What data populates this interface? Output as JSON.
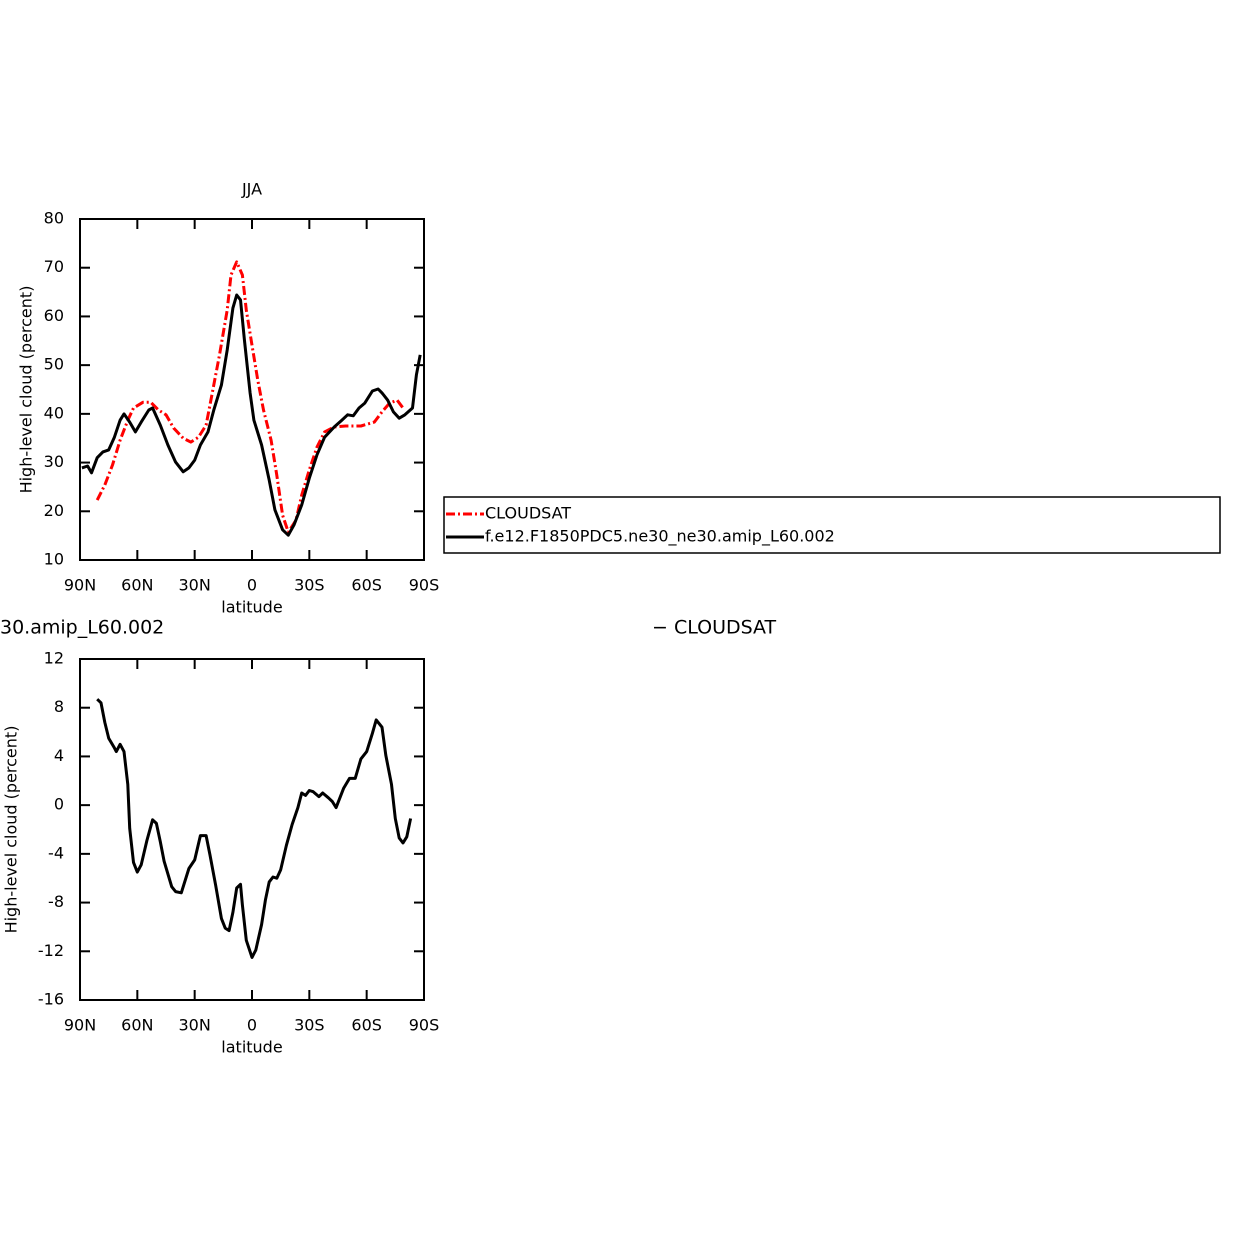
{
  "chart_data": [
    {
      "type": "line",
      "title": "JJA",
      "x_label": "latitude",
      "y_label": "High-level cloud (percent)",
      "xlim": [
        90,
        -90
      ],
      "xticks": [
        {
          "value": 90,
          "label": "90N"
        },
        {
          "value": 60,
          "label": "60N"
        },
        {
          "value": 30,
          "label": "30N"
        },
        0,
        {
          "value": -30,
          "label": "30S"
        },
        {
          "value": -60,
          "label": "60S"
        },
        {
          "value": -90,
          "label": "90S"
        }
      ],
      "ylim": [
        10,
        80
      ],
      "yticks": [
        10,
        20,
        30,
        40,
        50,
        60,
        70,
        80
      ],
      "legend": "right",
      "series": [
        {
          "name": "CLOUDSAT",
          "color": "#ff0000",
          "dashed": true,
          "x": [
            81,
            77,
            73,
            69,
            65,
            62,
            57,
            53,
            49,
            45,
            41,
            36,
            32,
            28,
            24,
            21,
            17,
            13,
            11,
            8,
            5,
            3,
            0,
            -3,
            -6,
            -10,
            -13,
            -16,
            -19,
            -23,
            -26,
            -30,
            -34,
            -38,
            -43,
            -49,
            -57,
            -64,
            -68,
            -72,
            -76,
            -79
          ],
          "values": [
            22.3,
            25.4,
            29.5,
            34.6,
            38.7,
            41.2,
            42.4,
            42.4,
            40.8,
            39.8,
            37.1,
            35,
            34.2,
            35.2,
            37.7,
            43.9,
            52.1,
            61.3,
            68.5,
            71.2,
            68.5,
            61.3,
            54.1,
            47,
            40.8,
            34.6,
            27.4,
            19.2,
            15.7,
            18.2,
            23.3,
            28.5,
            33.2,
            36.3,
            37.3,
            37.5,
            37.5,
            38.3,
            40.4,
            42.2,
            42.8,
            41.2
          ]
        },
        {
          "name": "f.e12.F1850PDC5.ne30_ne30.amip_L60.002",
          "color": "#000000",
          "dashed": false,
          "x": [
            89,
            86,
            84,
            81,
            78,
            75,
            72,
            69,
            67,
            64,
            61,
            58,
            54,
            52,
            48,
            44,
            40,
            36,
            33,
            30,
            27,
            23,
            20,
            16,
            13,
            10,
            8,
            6,
            4,
            1,
            -1,
            -5,
            -9,
            -12,
            -16,
            -19,
            -22,
            -26,
            -30,
            -34,
            -38,
            -43,
            -47,
            -50,
            -53,
            -56,
            -59,
            -63,
            -66,
            -68,
            -71,
            -74,
            -77,
            -80,
            -84,
            -86,
            -88
          ],
          "values": [
            28.9,
            29.3,
            27.9,
            31,
            32.2,
            32.6,
            35.2,
            38.7,
            40,
            38.3,
            36.3,
            38.3,
            40.8,
            41.2,
            37.7,
            33.6,
            30.1,
            28.1,
            28.9,
            30.5,
            33.6,
            36.3,
            40.8,
            45.9,
            53.1,
            61.7,
            64.4,
            63.4,
            55.2,
            44.3,
            38.7,
            33.6,
            26.4,
            20.3,
            16.2,
            15.1,
            17.2,
            21.3,
            26.8,
            31.6,
            35.2,
            37.3,
            38.7,
            39.8,
            39.6,
            41.2,
            42.2,
            44.7,
            45.1,
            44.3,
            42.8,
            40.4,
            39.1,
            39.8,
            41.2,
            48,
            52.1
          ]
        }
      ]
    },
    {
      "type": "line",
      "annotations": [
        "30.amip_L60.002",
        "− CLOUDSAT"
      ],
      "x_label": "latitude",
      "y_label": "High-level cloud (percent)",
      "xlim": [
        90,
        -90
      ],
      "xticks": [
        {
          "value": 90,
          "label": "90N"
        },
        {
          "value": 60,
          "label": "60N"
        },
        {
          "value": 30,
          "label": "30N"
        },
        0,
        {
          "value": -30,
          "label": "30S"
        },
        {
          "value": -60,
          "label": "60S"
        },
        {
          "value": -90,
          "label": "90S"
        }
      ],
      "ylim": [
        -16,
        12
      ],
      "yticks": [
        -16,
        -12,
        -8,
        -4,
        0,
        4,
        8,
        12
      ],
      "series": [
        {
          "color": "#000000",
          "dashed": false,
          "x": [
            81,
            79,
            77,
            75,
            72,
            71,
            69,
            67,
            65,
            64,
            62,
            60,
            58,
            55,
            52,
            50,
            48,
            46,
            42,
            40,
            37,
            33,
            30,
            27,
            24,
            22,
            19,
            16,
            14,
            12,
            10,
            8,
            6,
            5,
            3,
            0,
            -2,
            -5,
            -7,
            -9,
            -11,
            -13,
            -15,
            -18,
            -21,
            -24,
            -26,
            -28,
            -30,
            -32,
            -35,
            -37,
            -40,
            -42,
            -44,
            -45,
            -48,
            -51,
            -54,
            -57,
            -60,
            -63,
            -65,
            -68,
            -70,
            -73,
            -75,
            -77,
            -79,
            -81,
            -83
          ],
          "values": [
            8.7,
            8.4,
            6.8,
            5.5,
            4.7,
            4.4,
            5.0,
            4.4,
            1.7,
            -1.9,
            -4.7,
            -5.5,
            -4.9,
            -2.9,
            -1.2,
            -1.5,
            -3,
            -4.6,
            -6.7,
            -7.1,
            -7.2,
            -5.2,
            -4.5,
            -2.5,
            -2.5,
            -4.1,
            -6.6,
            -9.3,
            -10.1,
            -10.3,
            -8.8,
            -6.8,
            -6.5,
            -8.2,
            -11.1,
            -12.5,
            -11.9,
            -9.8,
            -7.8,
            -6.3,
            -5.9,
            -6,
            -5.3,
            -3.3,
            -1.6,
            -0.2,
            1,
            0.8,
            1.2,
            1.1,
            0.7,
            1,
            0.6,
            0.3,
            -0.2,
            0.2,
            1.4,
            2.2,
            2.2,
            3.8,
            4.4,
            5.9,
            7,
            6.4,
            4.1,
            1.7,
            -1.1,
            -2.7,
            -3.1,
            -2.6,
            -1.1
          ]
        }
      ]
    }
  ]
}
